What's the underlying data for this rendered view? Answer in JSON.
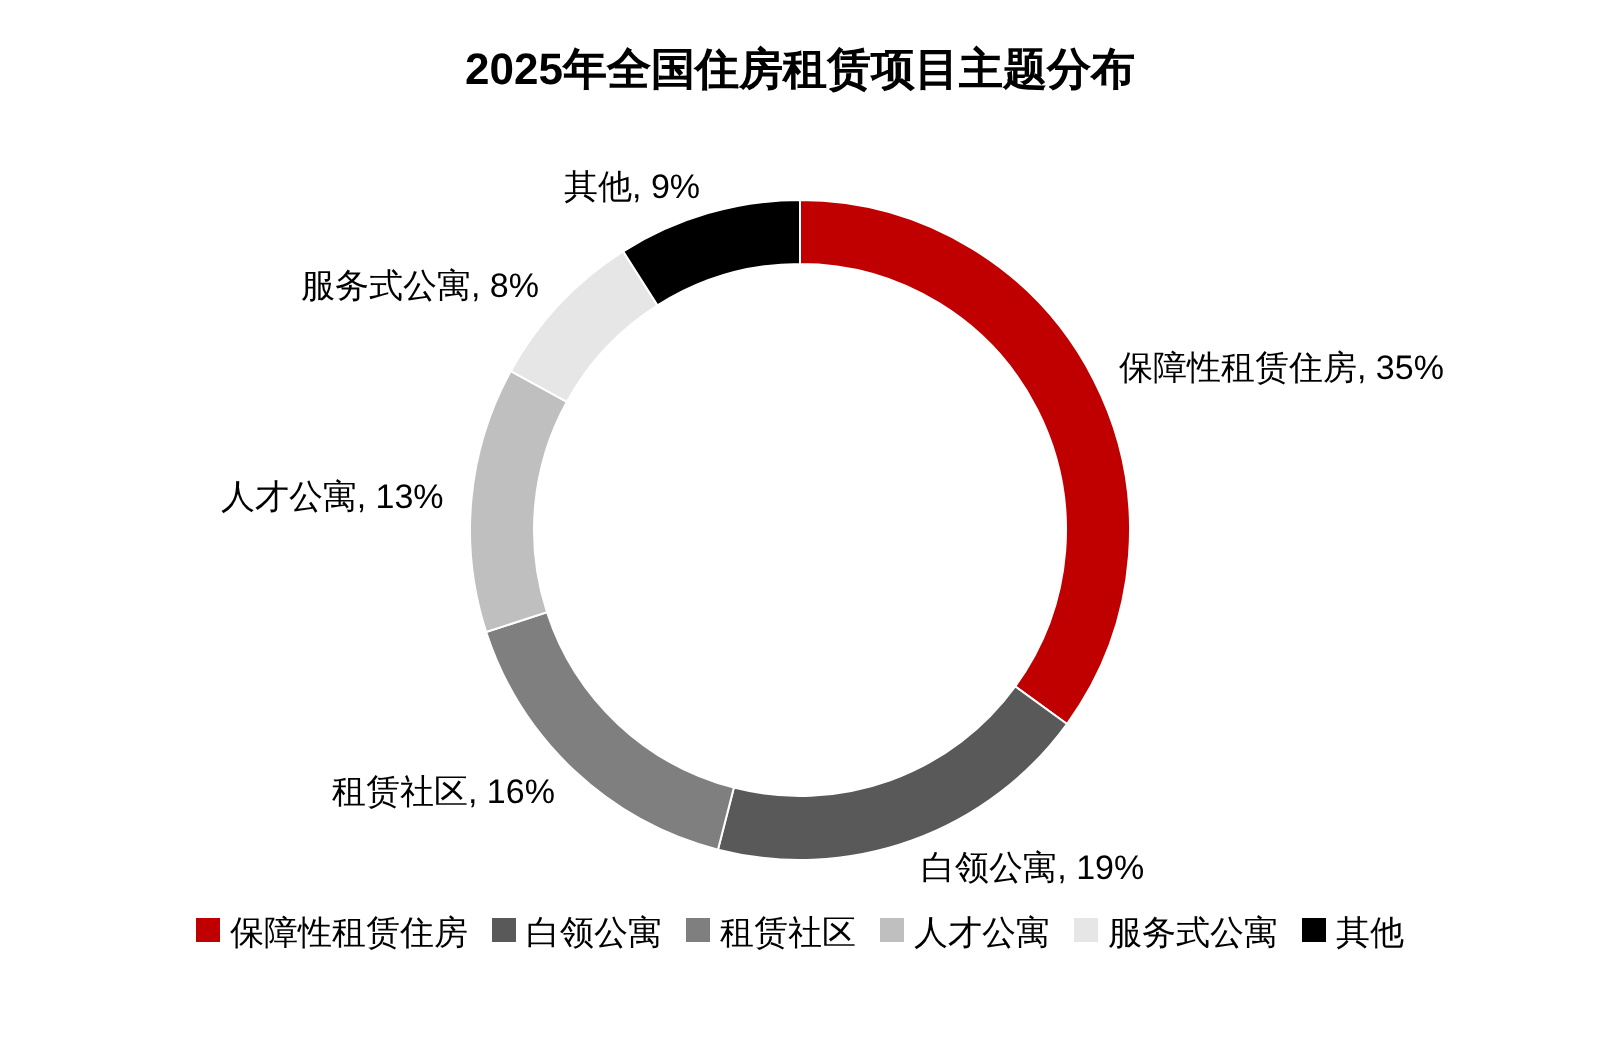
{
  "chart_data": {
    "type": "donut",
    "title": "2025年全国住房租赁项目主题分布",
    "categories": [
      "保障性租赁住房",
      "白领公寓",
      "租赁社区",
      "人才公寓",
      "服务式公寓",
      "其他"
    ],
    "values": [
      35,
      19,
      16,
      13,
      8,
      9
    ],
    "colors": [
      "#c00000",
      "#595959",
      "#7f7f7f",
      "#bfbfbf",
      "#e7e6e6",
      "#000000"
    ],
    "value_labels": [
      "保障性租赁住房, 35%",
      "白领公寓, 19%",
      "租赁社区, 16%",
      "人才公寓, 13%",
      "服务式公寓, 8%",
      "其他, 9%"
    ],
    "legend": "bottom"
  }
}
